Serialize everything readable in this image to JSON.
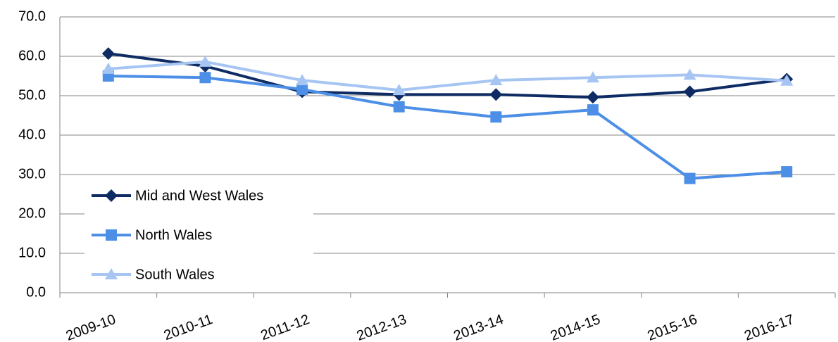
{
  "chart_data": {
    "type": "line",
    "categories": [
      "2009-10",
      "2010-11",
      "2011-12",
      "2012-13",
      "2013-14",
      "2014-15",
      "2015-16",
      "2016-17"
    ],
    "series": [
      {
        "name": "Mid and West Wales",
        "color": "#0e2c63",
        "marker": "diamond",
        "values": [
          60.7,
          57.5,
          51.0,
          50.3,
          50.3,
          49.6,
          51.0,
          54.2
        ]
      },
      {
        "name": "North Wales",
        "color": "#4d8fe6",
        "marker": "square",
        "values": [
          55.0,
          54.6,
          51.6,
          47.2,
          44.6,
          46.4,
          29.0,
          30.7
        ]
      },
      {
        "name": "South Wales",
        "color": "#a7c5f3",
        "marker": "triangle",
        "values": [
          56.8,
          58.6,
          53.9,
          51.4,
          53.9,
          54.6,
          55.3,
          53.8
        ]
      }
    ],
    "ylim": [
      0,
      70
    ],
    "yticks": [
      {
        "value": 0,
        "label": "0.0"
      },
      {
        "value": 10,
        "label": "10.0"
      },
      {
        "value": 20,
        "label": "20.0"
      },
      {
        "value": 30,
        "label": "30.0"
      },
      {
        "value": 40,
        "label": "40.0"
      },
      {
        "value": 50,
        "label": "50.0"
      },
      {
        "value": 60,
        "label": "60.0"
      },
      {
        "value": 70,
        "label": "70.0"
      }
    ],
    "grid": true,
    "legend": "lower left"
  }
}
